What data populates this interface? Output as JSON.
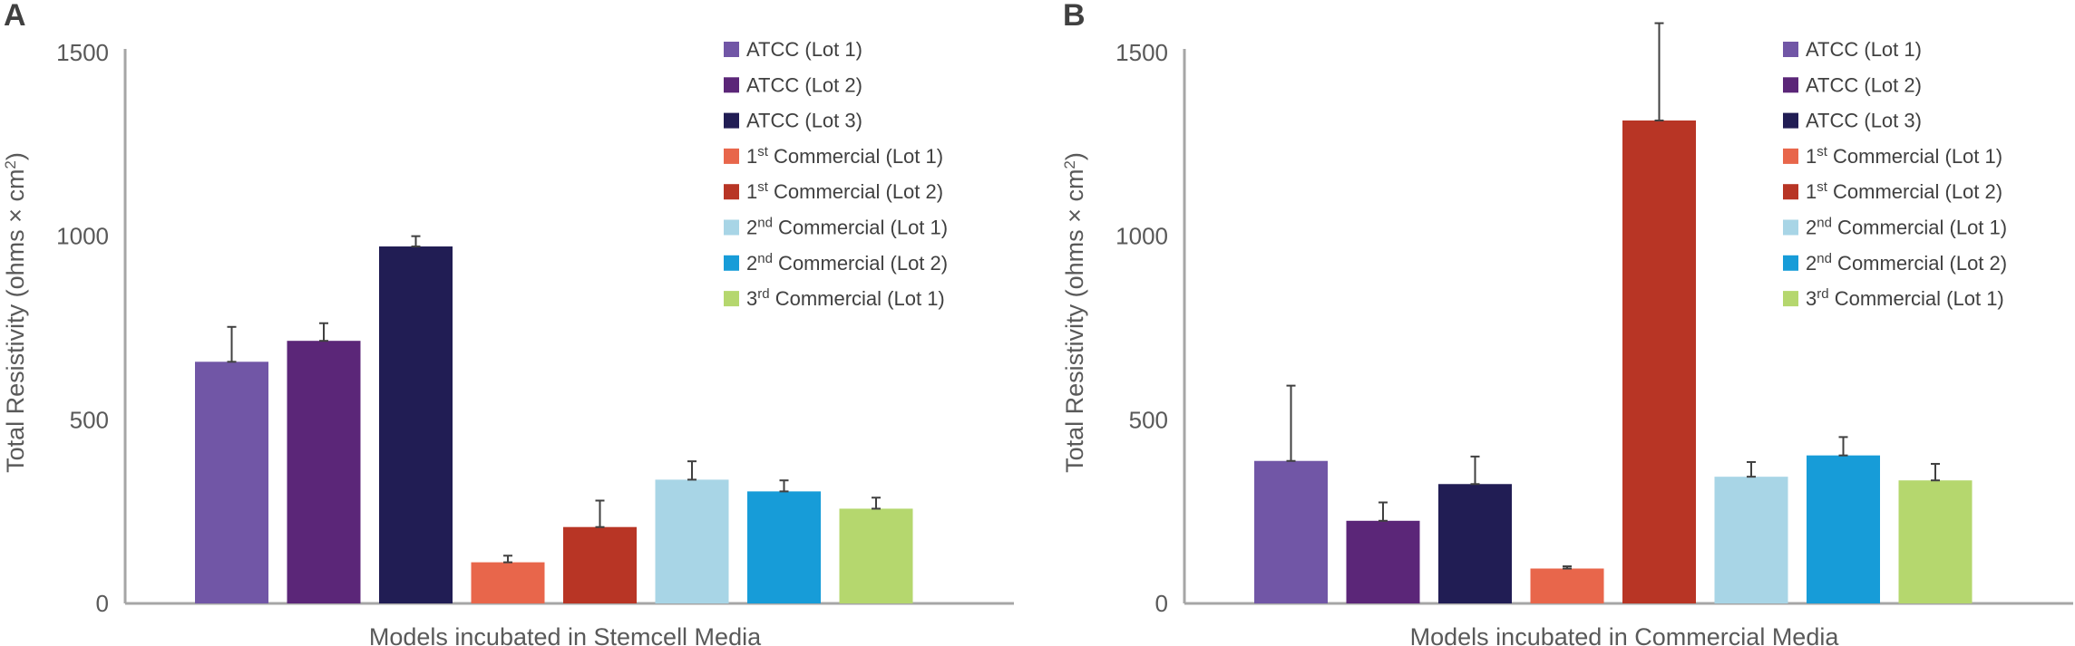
{
  "chart_data": [
    {
      "panel": "A",
      "type": "bar",
      "xlabel": "Models incubated in Stemcell Media",
      "ylabel": "Total Resistivity (ohms × cm²)",
      "ylim": [
        0,
        1500
      ],
      "yticks": [
        "0",
        "500",
        "1000",
        "1500"
      ],
      "grid": false,
      "legend_position": "top-right",
      "series": [
        {
          "name": "ATCC (Lot 1)",
          "value": 658,
          "error": 95,
          "color": "#7156a6"
        },
        {
          "name": "ATCC (Lot 2)",
          "value": 715,
          "error": 48,
          "color": "#5b2678"
        },
        {
          "name": "ATCC (Lot 3)",
          "value": 972,
          "error": 28,
          "color": "#211d54"
        },
        {
          "name": "1st Commercial (Lot 1)",
          "value": 112,
          "error": 18,
          "color": "#e8664b"
        },
        {
          "name": "1st Commercial (Lot 2)",
          "value": 208,
          "error": 72,
          "color": "#b83525"
        },
        {
          "name": "2nd Commercial (Lot 1)",
          "value": 337,
          "error": 50,
          "color": "#a8d5e6"
        },
        {
          "name": "2nd Commercial (Lot 2)",
          "value": 305,
          "error": 30,
          "color": "#179cd8"
        },
        {
          "name": "3rd Commercial (Lot 1)",
          "value": 258,
          "error": 30,
          "color": "#b5d76e"
        }
      ]
    },
    {
      "panel": "B",
      "type": "bar",
      "xlabel": "Models incubated in Commercial Media",
      "ylabel": "Total Resistivity (ohms × cm²)",
      "ylim": [
        0,
        1500
      ],
      "yticks": [
        "0",
        "500",
        "1000",
        "1500"
      ],
      "grid": false,
      "legend_position": "top-right",
      "series": [
        {
          "name": "ATCC (Lot 1)",
          "value": 388,
          "error": 205,
          "color": "#7156a6"
        },
        {
          "name": "ATCC (Lot 2)",
          "value": 225,
          "error": 50,
          "color": "#5b2678"
        },
        {
          "name": "ATCC (Lot 3)",
          "value": 325,
          "error": 75,
          "color": "#211d54"
        },
        {
          "name": "1st Commercial (Lot 1)",
          "value": 95,
          "error": 6,
          "color": "#e8664b"
        },
        {
          "name": "1st Commercial (Lot 2)",
          "value": 1315,
          "error": 265,
          "color": "#b83525"
        },
        {
          "name": "2nd Commercial (Lot 1)",
          "value": 345,
          "error": 40,
          "color": "#a8d5e6"
        },
        {
          "name": "2nd Commercial (Lot 2)",
          "value": 403,
          "error": 50,
          "color": "#179cd8"
        },
        {
          "name": "3rd Commercial (Lot 1)",
          "value": 335,
          "error": 45,
          "color": "#b5d76e"
        }
      ]
    }
  ]
}
